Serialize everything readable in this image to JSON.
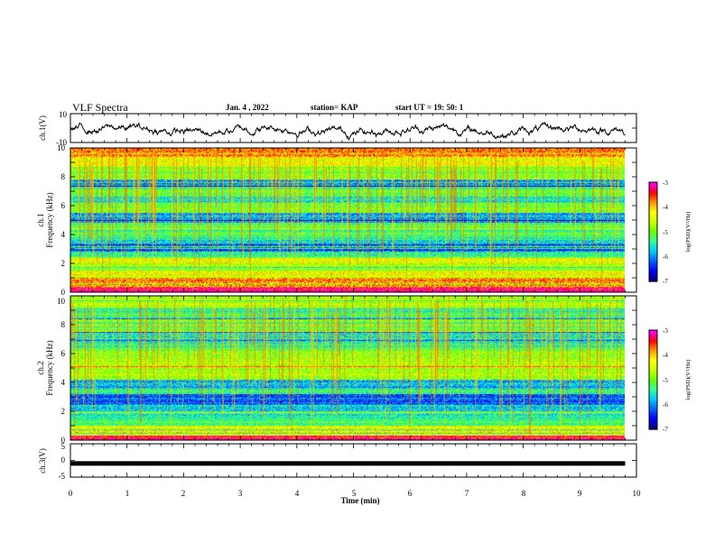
{
  "header": {
    "title": "VLF Spectra",
    "date": "Jan. 4 , 2022",
    "station": "station= KAP",
    "start": "start  UT =   19: 50: 1"
  },
  "colors": {
    "spectrogram_scale": [
      "#00007f",
      "#0000ff",
      "#0066ff",
      "#00ccff",
      "#33ff99",
      "#66ff00",
      "#ccff00",
      "#ffff00",
      "#ff9900",
      "#ff0000",
      "#ff00ff",
      "#ffffff"
    ],
    "trace": "#000000"
  },
  "chart_data": [
    {
      "type": "line",
      "name": "ch1-waveform",
      "ylabel": "ch.1(V)",
      "ylim": [
        -10,
        10
      ],
      "yticks": [
        "10",
        "-10"
      ],
      "xlim": [
        0,
        10
      ],
      "description_values": "mean level ~ -1 V, fluctuating between about -6 V and 6 V"
    },
    {
      "type": "heatmap",
      "name": "ch1-spectrogram",
      "title": "ch.1",
      "ylabel": "Frequency (kHz)",
      "ylim": [
        0,
        10
      ],
      "yticks": [
        "0",
        "2",
        "4",
        "6",
        "8",
        "10"
      ],
      "xlim": [
        0,
        9.8
      ],
      "colorbar": {
        "label": "log(PSD)(V²/Hz)",
        "range": [
          -7,
          -3
        ],
        "ticks": [
          "-3",
          "-4",
          "-5",
          "-6",
          "-7"
        ]
      },
      "bands_kHz_log_psd": [
        [
          0.0,
          0.3,
          -3.3
        ],
        [
          0.3,
          1.0,
          -3.8
        ],
        [
          1.0,
          1.5,
          -4.4
        ],
        [
          1.5,
          2.0,
          -4.9
        ],
        [
          2.0,
          2.4,
          -4.3
        ],
        [
          2.4,
          2.8,
          -5.4
        ],
        [
          2.8,
          3.4,
          -6.3
        ],
        [
          3.4,
          3.8,
          -5.6
        ],
        [
          3.8,
          4.8,
          -5.2
        ],
        [
          4.8,
          5.5,
          -5.9
        ],
        [
          5.5,
          6.2,
          -5.0
        ],
        [
          6.2,
          6.6,
          -5.6
        ],
        [
          6.6,
          7.3,
          -5.2
        ],
        [
          7.3,
          7.8,
          -6.0
        ],
        [
          7.8,
          8.6,
          -4.9
        ],
        [
          8.6,
          9.4,
          -4.4
        ],
        [
          9.4,
          10.0,
          -3.9
        ]
      ]
    },
    {
      "type": "heatmap",
      "name": "ch2-spectrogram",
      "title": "ch.2",
      "ylabel": "Frequency (kHz)",
      "ylim": [
        0,
        10
      ],
      "yticks": [
        "0",
        "2",
        "4",
        "6",
        "8",
        "10"
      ],
      "xlim": [
        0,
        9.8
      ],
      "colorbar": {
        "label": "log(PSD)(V²/Hz)",
        "range": [
          -7,
          -3
        ],
        "ticks": [
          "-3",
          "-4",
          "-5",
          "-6",
          "-7"
        ]
      },
      "bands_kHz_log_psd": [
        [
          0.0,
          0.3,
          -3.4
        ],
        [
          0.3,
          1.0,
          -4.3
        ],
        [
          1.0,
          1.5,
          -5.2
        ],
        [
          1.5,
          2.0,
          -5.5
        ],
        [
          2.0,
          2.5,
          -5.8
        ],
        [
          2.5,
          3.2,
          -6.2
        ],
        [
          3.2,
          3.6,
          -5.4
        ],
        [
          3.6,
          4.2,
          -5.9
        ],
        [
          4.2,
          5.2,
          -4.7
        ],
        [
          5.2,
          6.2,
          -4.8
        ],
        [
          6.2,
          6.8,
          -5.3
        ],
        [
          6.8,
          7.5,
          -5.6
        ],
        [
          7.5,
          8.4,
          -5.1
        ],
        [
          8.4,
          9.2,
          -5.4
        ],
        [
          9.2,
          10.0,
          -4.7
        ]
      ]
    },
    {
      "type": "line",
      "name": "ch3-waveform",
      "ylabel": "ch.3(V)",
      "ylim": [
        -5,
        5
      ],
      "yticks": [
        "5",
        "0",
        "-5"
      ],
      "xlim": [
        0,
        9.8
      ],
      "values_constant": -0.9
    }
  ],
  "x_axis": {
    "label": "Time (min)",
    "ticks": [
      "0",
      "1",
      "2",
      "3",
      "4",
      "5",
      "6",
      "7",
      "8",
      "9",
      "10"
    ],
    "range": [
      0,
      10
    ]
  }
}
